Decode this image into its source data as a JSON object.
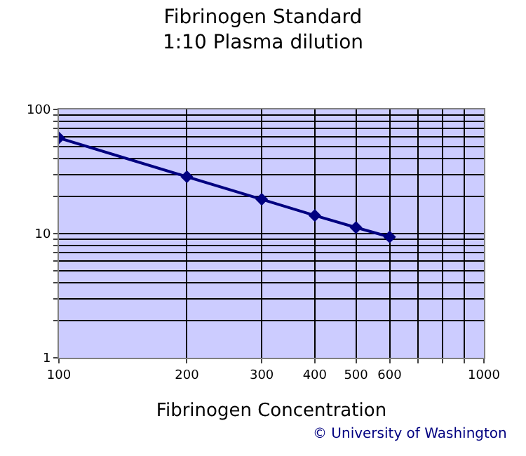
{
  "chart_data": {
    "type": "line",
    "title": "Fibrinogen Standard\n1:10 Plasma dilution",
    "xlabel": "Fibrinogen Concentration",
    "x": [
      100,
      200,
      300,
      400,
      500,
      600
    ],
    "series": [
      {
        "color": "#000080",
        "values": [
          59,
          28.7,
          18.9,
          14,
          11.2,
          9.4
        ]
      }
    ],
    "log": "xy",
    "grid": true,
    "marker": "diamond",
    "xlim": [
      100,
      1000
    ],
    "ylim": [
      1,
      100
    ],
    "xticks": [
      100,
      200,
      300,
      400,
      500,
      600,
      {
        "value": 700,
        "label": null
      },
      {
        "value": 800,
        "label": null
      },
      {
        "value": 900,
        "label": null
      },
      1000
    ],
    "yticks": [
      1,
      {
        "value": 2,
        "label": null
      },
      {
        "value": 3,
        "label": null
      },
      {
        "value": 4,
        "label": null
      },
      {
        "value": 5,
        "label": null
      },
      {
        "value": 6,
        "label": null
      },
      {
        "value": 7,
        "label": null
      },
      {
        "value": 8,
        "label": null
      },
      {
        "value": 9,
        "label": null
      },
      10,
      {
        "value": 20,
        "label": null
      },
      {
        "value": 30,
        "label": null
      },
      {
        "value": 40,
        "label": null
      },
      {
        "value": 50,
        "label": null
      },
      {
        "value": 60,
        "label": null
      },
      {
        "value": 70,
        "label": null
      },
      {
        "value": 80,
        "label": null
      },
      {
        "value": 90,
        "label": null
      },
      100
    ],
    "annotations": [
      "© University of Washington"
    ]
  }
}
